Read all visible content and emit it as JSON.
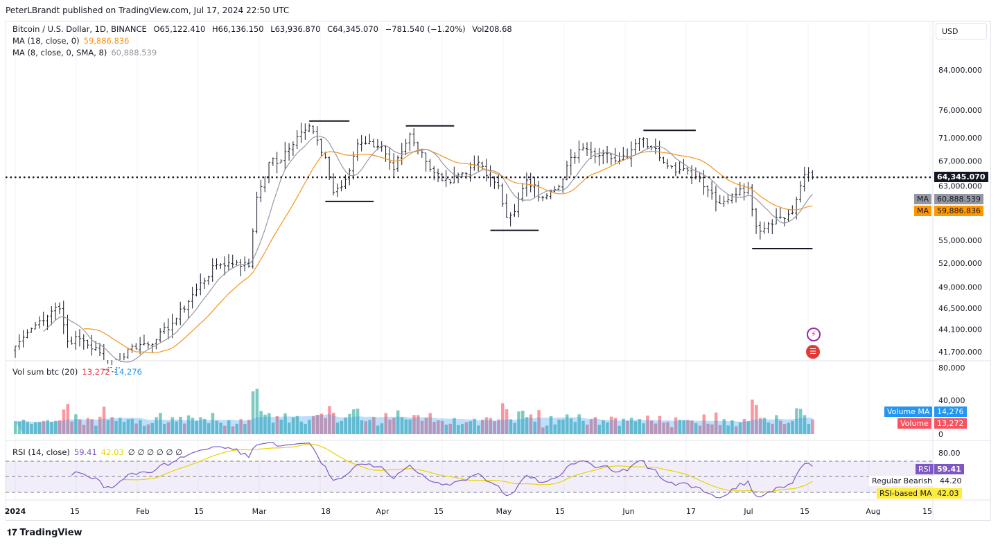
{
  "header": {
    "published": "PeterLBrandt published on TradingView.com, Jul 17, 2024 22:50 UTC"
  },
  "symbol": {
    "title": "Bitcoin / U.S. Dollar, 1D, BINANCE",
    "open": "O65,122.410",
    "high": "H66,136.150",
    "low": "L63,936.870",
    "close": "C64,345.070",
    "change": "−781.540 (−1.20%)",
    "vol": "Vol208.68"
  },
  "ma18": {
    "label": "MA (18, close, 0)",
    "value": "59,886.836",
    "tag": "MA",
    "color": "#f7931a"
  },
  "ma8": {
    "label": "MA (8, close, 0, SMA, 8)",
    "value": "60,888.539",
    "tag": "MA",
    "color": "#9598a1"
  },
  "currency": "USD",
  "price_axis": [
    "84,000.000",
    "76,000.000",
    "71,000.000",
    "67,000.000",
    "63,000.000",
    "55,000.000",
    "52,000.000",
    "49,000.000",
    "46,500.000",
    "44,100.000",
    "41,700.000"
  ],
  "last_price": "64,345.070",
  "volume": {
    "label": "Vol sum btc (20)",
    "value": "13,272",
    "ma_value": "14,276",
    "axis": [
      "80,000",
      "40,000",
      "0"
    ],
    "ma_tag": "Volume MA",
    "vol_tag": "Volume"
  },
  "rsi": {
    "label": "RSI (14, close)",
    "value": "59.41",
    "ma_value": "42.03",
    "extras": "∅ ∅ ∅ ∅ ∅ ∅",
    "axis_top": "80.00",
    "tag": "RSI",
    "bearish_label": "Regular Bearish",
    "bearish_value": "44.20",
    "ma_tag": "RSI-based MA"
  },
  "time_axis": [
    "2024",
    "15",
    "Feb",
    "15",
    "Mar",
    "18",
    "Apr",
    "15",
    "May",
    "15",
    "Jun",
    "17",
    "Jul",
    "15",
    "Aug",
    "15"
  ],
  "footer": {
    "brand": "TradingView"
  },
  "chart_data": {
    "type": "ohlc",
    "scale": "log",
    "x_start": "2024-01-01",
    "closes_waypoints": [
      [
        0,
        42300
      ],
      [
        4,
        44200
      ],
      [
        10,
        46600
      ],
      [
        11,
        46400
      ],
      [
        13,
        42800
      ],
      [
        16,
        43100
      ],
      [
        21,
        41600
      ],
      [
        22,
        39900
      ],
      [
        25,
        40100
      ],
      [
        28,
        42000
      ],
      [
        35,
        43000
      ],
      [
        40,
        45300
      ],
      [
        45,
        48700
      ],
      [
        50,
        51800
      ],
      [
        55,
        52100
      ],
      [
        58,
        51600
      ],
      [
        60,
        61200
      ],
      [
        63,
        66800
      ],
      [
        66,
        67000
      ],
      [
        70,
        71200
      ],
      [
        73,
        73100
      ],
      [
        77,
        67600
      ],
      [
        79,
        62000
      ],
      [
        82,
        64000
      ],
      [
        85,
        69900
      ],
      [
        91,
        69500
      ],
      [
        94,
        65600
      ],
      [
        98,
        71600
      ],
      [
        102,
        66900
      ],
      [
        106,
        63800
      ],
      [
        108,
        63500
      ],
      [
        112,
        64900
      ],
      [
        115,
        66800
      ],
      [
        120,
        63000
      ],
      [
        122,
        58200
      ],
      [
        124,
        59100
      ],
      [
        127,
        63900
      ],
      [
        131,
        61200
      ],
      [
        135,
        62900
      ],
      [
        137,
        66200
      ],
      [
        141,
        69200
      ],
      [
        145,
        67900
      ],
      [
        152,
        67500
      ],
      [
        155,
        70800
      ],
      [
        158,
        69300
      ],
      [
        163,
        66100
      ],
      [
        170,
        64200
      ],
      [
        175,
        60300
      ],
      [
        178,
        61600
      ],
      [
        182,
        62700
      ],
      [
        184,
        57000
      ],
      [
        186,
        56700
      ],
      [
        189,
        58200
      ],
      [
        193,
        58900
      ],
      [
        195,
        63000
      ],
      [
        196,
        64800
      ],
      [
        197,
        65100
      ],
      [
        198,
        64345
      ]
    ],
    "trendlines": [
      [
        [
          73,
          74000
        ],
        [
          83,
          74000
        ]
      ],
      [
        [
          77,
          60600
        ],
        [
          89,
          60600
        ]
      ],
      [
        [
          97,
          73100
        ],
        [
          109,
          73100
        ]
      ],
      [
        [
          118,
          56400
        ],
        [
          130,
          56400
        ]
      ],
      [
        [
          156,
          72300
        ],
        [
          169,
          72300
        ]
      ],
      [
        [
          183,
          53900
        ],
        [
          198,
          53900
        ]
      ]
    ],
    "ylim": [
      40000,
      90000
    ]
  }
}
